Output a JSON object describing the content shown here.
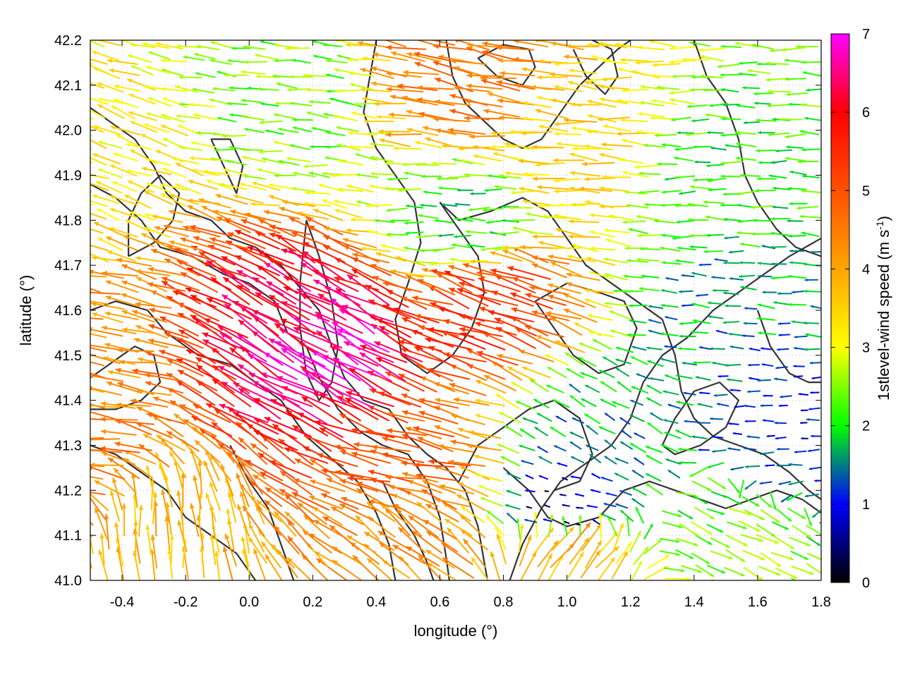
{
  "chart_data": {
    "type": "vector-field",
    "title": "",
    "xlabel": "longitude (°)",
    "ylabel": "latitude (°)",
    "xlim": [
      -0.5,
      1.8
    ],
    "ylim": [
      41.0,
      42.2
    ],
    "xticks": [
      "-0.4",
      "-0.2",
      "0.0",
      "0.2",
      "0.4",
      "0.6",
      "0.8",
      "1.0",
      "1.2",
      "1.4",
      "1.6",
      "1.8"
    ],
    "xtick_values": [
      -0.4,
      -0.2,
      0.0,
      0.2,
      0.4,
      0.6,
      0.8,
      1.0,
      1.2,
      1.4,
      1.6,
      1.8
    ],
    "yticks": [
      "41.0",
      "41.1",
      "41.2",
      "41.3",
      "41.4",
      "41.5",
      "41.6",
      "41.7",
      "41.8",
      "41.9",
      "42.0",
      "42.1",
      "42.2"
    ],
    "ytick_values": [
      41.0,
      41.1,
      41.2,
      41.3,
      41.4,
      41.5,
      41.6,
      41.7,
      41.8,
      41.9,
      42.0,
      42.1,
      42.2
    ],
    "grid": "dotted",
    "colorbar": {
      "label": "1stlevel-wind speed (m s",
      "label_sup": "-1",
      "label_tail": ")",
      "range": [
        0,
        7
      ],
      "ticks": [
        "0",
        "1",
        "2",
        "3",
        "4",
        "5",
        "6",
        "7"
      ],
      "tick_values": [
        0,
        1,
        2,
        3,
        4,
        5,
        6,
        7
      ],
      "stops": [
        {
          "value": 0,
          "color": "#000000"
        },
        {
          "value": 1,
          "color": "#0000ff"
        },
        {
          "value": 1.7,
          "color": "#00b050"
        },
        {
          "value": 2,
          "color": "#00ff00"
        },
        {
          "value": 3,
          "color": "#ffff00"
        },
        {
          "value": 4,
          "color": "#ffa500"
        },
        {
          "value": 5,
          "color": "#ff5000"
        },
        {
          "value": 6,
          "color": "#ff0000"
        },
        {
          "value": 7,
          "color": "#ff00ff"
        }
      ]
    },
    "contour_color": "#333333",
    "contours": [
      [
        [
          -0.5,
          41.88
        ],
        [
          -0.42,
          41.85
        ],
        [
          -0.34,
          41.8
        ],
        [
          -0.28,
          41.74
        ],
        [
          -0.18,
          41.72
        ],
        [
          -0.08,
          41.68
        ],
        [
          0.0,
          41.66
        ],
        [
          0.08,
          41.62
        ],
        [
          0.12,
          41.55
        ],
        [
          0.18,
          41.52
        ],
        [
          0.22,
          41.45
        ],
        [
          0.28,
          41.38
        ],
        [
          0.35,
          41.33
        ],
        [
          0.42,
          41.3
        ],
        [
          0.5,
          41.28
        ],
        [
          0.56,
          41.22
        ],
        [
          0.6,
          41.14
        ],
        [
          0.62,
          41.05
        ],
        [
          0.63,
          41.0
        ]
      ],
      [
        [
          -0.5,
          42.05
        ],
        [
          -0.44,
          42.02
        ],
        [
          -0.36,
          41.98
        ],
        [
          -0.3,
          41.92
        ],
        [
          -0.26,
          41.86
        ],
        [
          -0.2,
          41.82
        ],
        [
          -0.12,
          41.8
        ],
        [
          -0.06,
          41.76
        ],
        [
          0.02,
          41.74
        ],
        [
          0.1,
          41.7
        ],
        [
          0.16,
          41.65
        ],
        [
          0.22,
          41.6
        ],
        [
          0.26,
          41.52
        ],
        [
          0.3,
          41.45
        ],
        [
          0.36,
          41.4
        ],
        [
          0.44,
          41.38
        ],
        [
          0.5,
          41.32
        ],
        [
          0.56,
          41.28
        ],
        [
          0.62,
          41.25
        ],
        [
          0.68,
          41.2
        ],
        [
          0.72,
          41.12
        ],
        [
          0.74,
          41.04
        ],
        [
          0.75,
          41.0
        ]
      ],
      [
        [
          -0.5,
          41.6
        ],
        [
          -0.42,
          41.62
        ],
        [
          -0.32,
          41.6
        ],
        [
          -0.26,
          41.55
        ],
        [
          -0.16,
          41.5
        ],
        [
          -0.06,
          41.48
        ],
        [
          0.02,
          41.44
        ],
        [
          0.1,
          41.4
        ],
        [
          0.18,
          41.32
        ],
        [
          0.26,
          41.27
        ],
        [
          0.34,
          41.22
        ],
        [
          0.4,
          41.15
        ],
        [
          0.44,
          41.08
        ],
        [
          0.46,
          41.0
        ]
      ],
      [
        [
          -0.5,
          41.3
        ],
        [
          -0.42,
          41.28
        ],
        [
          -0.34,
          41.24
        ],
        [
          -0.26,
          41.2
        ],
        [
          -0.2,
          41.14
        ],
        [
          -0.12,
          41.1
        ],
        [
          -0.04,
          41.06
        ],
        [
          0.02,
          41.0
        ]
      ],
      [
        [
          0.4,
          42.2
        ],
        [
          0.38,
          42.12
        ],
        [
          0.36,
          42.04
        ],
        [
          0.4,
          41.96
        ],
        [
          0.46,
          41.9
        ],
        [
          0.52,
          41.84
        ],
        [
          0.54,
          41.75
        ],
        [
          0.5,
          41.66
        ],
        [
          0.46,
          41.58
        ],
        [
          0.48,
          41.5
        ],
        [
          0.56,
          41.46
        ],
        [
          0.64,
          41.5
        ],
        [
          0.7,
          41.56
        ],
        [
          0.74,
          41.64
        ],
        [
          0.72,
          41.72
        ],
        [
          0.66,
          41.78
        ],
        [
          0.6,
          41.84
        ]
      ],
      [
        [
          0.6,
          41.84
        ],
        [
          0.66,
          41.8
        ],
        [
          0.76,
          41.82
        ],
        [
          0.86,
          41.85
        ],
        [
          0.94,
          41.82
        ],
        [
          1.0,
          41.76
        ],
        [
          1.06,
          41.7
        ],
        [
          1.14,
          41.66
        ],
        [
          1.22,
          41.62
        ],
        [
          1.3,
          41.58
        ],
        [
          1.34,
          41.5
        ],
        [
          1.36,
          41.42
        ],
        [
          1.4,
          41.36
        ],
        [
          1.46,
          41.32
        ],
        [
          1.54,
          41.3
        ],
        [
          1.62,
          41.28
        ],
        [
          1.7,
          41.24
        ],
        [
          1.76,
          41.2
        ],
        [
          1.8,
          41.18
        ]
      ],
      [
        [
          0.8,
          41.25
        ],
        [
          0.88,
          41.2
        ],
        [
          0.94,
          41.14
        ],
        [
          1.0,
          41.12
        ],
        [
          1.1,
          41.14
        ],
        [
          1.18,
          41.2
        ],
        [
          1.26,
          41.22
        ],
        [
          1.34,
          41.2
        ],
        [
          1.42,
          41.18
        ],
        [
          1.5,
          41.16
        ],
        [
          1.58,
          41.18
        ],
        [
          1.66,
          41.2
        ],
        [
          1.74,
          41.18
        ],
        [
          1.8,
          41.15
        ]
      ],
      [
        [
          0.82,
          41.0
        ],
        [
          0.86,
          41.08
        ],
        [
          0.92,
          41.16
        ],
        [
          0.98,
          41.22
        ],
        [
          1.06,
          41.26
        ],
        [
          1.14,
          41.3
        ],
        [
          1.2,
          41.36
        ],
        [
          1.24,
          41.44
        ],
        [
          1.3,
          41.5
        ],
        [
          1.38,
          41.54
        ],
        [
          1.46,
          41.6
        ],
        [
          1.54,
          41.64
        ],
        [
          1.62,
          41.68
        ],
        [
          1.7,
          41.72
        ],
        [
          1.8,
          41.76
        ]
      ],
      [
        [
          1.4,
          42.2
        ],
        [
          1.44,
          42.12
        ],
        [
          1.5,
          42.06
        ],
        [
          1.54,
          41.98
        ],
        [
          1.56,
          41.9
        ],
        [
          1.6,
          41.84
        ],
        [
          1.66,
          41.78
        ],
        [
          1.72,
          41.74
        ],
        [
          1.8,
          41.72
        ]
      ],
      [
        [
          0.62,
          42.2
        ],
        [
          0.64,
          42.12
        ],
        [
          0.68,
          42.06
        ],
        [
          0.74,
          42.02
        ],
        [
          0.8,
          41.98
        ],
        [
          0.86,
          41.96
        ],
        [
          0.92,
          41.98
        ],
        [
          0.98,
          42.04
        ],
        [
          1.04,
          42.1
        ],
        [
          1.1,
          42.14
        ],
        [
          1.16,
          42.18
        ],
        [
          1.2,
          42.2
        ]
      ],
      [
        [
          0.72,
          42.16
        ],
        [
          0.78,
          42.12
        ],
        [
          0.86,
          42.1
        ],
        [
          0.9,
          42.14
        ],
        [
          0.88,
          42.18
        ],
        [
          0.8,
          42.19
        ],
        [
          0.72,
          42.16
        ]
      ],
      [
        [
          1.02,
          42.18
        ],
        [
          1.06,
          42.12
        ],
        [
          1.12,
          42.08
        ],
        [
          1.16,
          42.12
        ],
        [
          1.14,
          42.18
        ],
        [
          1.08,
          42.2
        ]
      ],
      [
        [
          0.18,
          41.8
        ],
        [
          0.22,
          41.72
        ],
        [
          0.26,
          41.62
        ],
        [
          0.28,
          41.52
        ],
        [
          0.26,
          41.44
        ],
        [
          0.22,
          41.4
        ],
        [
          0.18,
          41.46
        ],
        [
          0.16,
          41.56
        ],
        [
          0.16,
          41.66
        ],
        [
          0.18,
          41.8
        ]
      ],
      [
        [
          -0.5,
          41.45
        ],
        [
          -0.44,
          41.48
        ],
        [
          -0.36,
          41.52
        ],
        [
          -0.3,
          41.5
        ],
        [
          -0.28,
          41.44
        ],
        [
          -0.34,
          41.4
        ],
        [
          -0.42,
          41.38
        ],
        [
          -0.5,
          41.38
        ]
      ],
      [
        [
          -0.38,
          41.72
        ],
        [
          -0.3,
          41.75
        ],
        [
          -0.24,
          41.8
        ],
        [
          -0.22,
          41.86
        ],
        [
          -0.28,
          41.9
        ],
        [
          -0.34,
          41.86
        ],
        [
          -0.38,
          41.8
        ],
        [
          -0.38,
          41.72
        ]
      ],
      [
        [
          -0.12,
          41.98
        ],
        [
          -0.08,
          41.92
        ],
        [
          -0.04,
          41.86
        ],
        [
          -0.02,
          41.92
        ],
        [
          -0.06,
          41.98
        ],
        [
          -0.12,
          41.98
        ]
      ],
      [
        [
          1.3,
          41.3
        ],
        [
          1.34,
          41.36
        ],
        [
          1.4,
          41.42
        ],
        [
          1.48,
          41.44
        ],
        [
          1.54,
          41.4
        ],
        [
          1.5,
          41.34
        ],
        [
          1.42,
          41.3
        ],
        [
          1.34,
          41.28
        ],
        [
          1.3,
          41.3
        ]
      ],
      [
        [
          0.66,
          41.22
        ],
        [
          0.72,
          41.3
        ],
        [
          0.8,
          41.34
        ],
        [
          0.88,
          41.38
        ],
        [
          0.96,
          41.4
        ],
        [
          1.04,
          41.36
        ],
        [
          1.08,
          41.28
        ],
        [
          1.04,
          41.22
        ],
        [
          0.96,
          41.2
        ]
      ],
      [
        [
          0.42,
          41.22
        ],
        [
          0.46,
          41.16
        ],
        [
          0.52,
          41.1
        ],
        [
          0.56,
          41.04
        ],
        [
          0.58,
          41.0
        ]
      ],
      [
        [
          -0.06,
          41.3
        ],
        [
          0.0,
          41.22
        ],
        [
          0.06,
          41.16
        ],
        [
          0.1,
          41.08
        ],
        [
          0.14,
          41.0
        ]
      ],
      [
        [
          1.6,
          41.6
        ],
        [
          1.64,
          41.52
        ],
        [
          1.7,
          41.46
        ],
        [
          1.76,
          41.44
        ],
        [
          1.8,
          41.44
        ]
      ],
      [
        [
          0.9,
          41.62
        ],
        [
          0.96,
          41.56
        ],
        [
          1.02,
          41.5
        ],
        [
          1.1,
          41.46
        ],
        [
          1.18,
          41.48
        ],
        [
          1.22,
          41.56
        ],
        [
          1.18,
          41.62
        ],
        [
          1.1,
          41.64
        ],
        [
          1.0,
          41.66
        ],
        [
          0.9,
          41.62
        ]
      ]
    ],
    "wind_field": [
      {
        "x": -0.5,
        "y": 41.9,
        "speed": 3.2,
        "dir": 160
      },
      {
        "x": -0.5,
        "y": 41.5,
        "speed": 4.2,
        "dir": 170
      },
      {
        "x": -0.5,
        "y": 41.25,
        "speed": 4.5,
        "dir": 175
      },
      {
        "x": 0.2,
        "y": 41.55,
        "speed": 6.2,
        "dir": 150
      },
      {
        "x": 0.3,
        "y": 41.48,
        "speed": 6.8,
        "dir": 150
      },
      {
        "x": 0.2,
        "y": 42.05,
        "speed": 2.4,
        "dir": 175
      },
      {
        "x": 0.7,
        "y": 42.1,
        "speed": 4.6,
        "dir": 170
      },
      {
        "x": 0.7,
        "y": 41.8,
        "speed": 2.0,
        "dir": 180
      },
      {
        "x": 0.8,
        "y": 41.6,
        "speed": 5.5,
        "dir": 160
      },
      {
        "x": 0.6,
        "y": 41.25,
        "speed": 4.8,
        "dir": 168
      },
      {
        "x": 0.6,
        "y": 41.05,
        "speed": 4.2,
        "dir": 140
      },
      {
        "x": 1.1,
        "y": 41.95,
        "speed": 3.5,
        "dir": 175
      },
      {
        "x": 1.5,
        "y": 41.9,
        "speed": 2.1,
        "dir": 180
      },
      {
        "x": 1.5,
        "y": 41.6,
        "speed": 1.6,
        "dir": 175
      },
      {
        "x": 1.7,
        "y": 41.35,
        "speed": 1.0,
        "dir": 180
      },
      {
        "x": 1.0,
        "y": 41.15,
        "speed": 0.4,
        "dir": 170
      },
      {
        "x": 1.1,
        "y": 41.32,
        "speed": 1.6,
        "dir": 150
      },
      {
        "x": 1.5,
        "y": 41.08,
        "speed": 2.4,
        "dir": 335
      },
      {
        "x": 1.0,
        "y": 41.05,
        "speed": 4.0,
        "dir": 50
      },
      {
        "x": -0.3,
        "y": 41.1,
        "speed": 3.8,
        "dir": 95
      }
    ]
  }
}
